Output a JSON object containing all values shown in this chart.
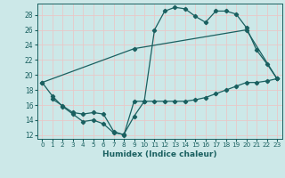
{
  "xlabel": "Humidex (Indice chaleur)",
  "ylabel": "",
  "bg_color": "#cce8e8",
  "grid_color": "#e8c8c8",
  "line_color": "#1a6060",
  "xlim": [
    -0.5,
    23.5
  ],
  "ylim": [
    11.5,
    29.5
  ],
  "xticks": [
    0,
    1,
    2,
    3,
    4,
    5,
    6,
    7,
    8,
    9,
    10,
    11,
    12,
    13,
    14,
    15,
    16,
    17,
    18,
    19,
    20,
    21,
    22,
    23
  ],
  "yticks": [
    12,
    14,
    16,
    18,
    20,
    22,
    24,
    26,
    28
  ],
  "line1_x": [
    0,
    1,
    2,
    3,
    4,
    5,
    6,
    7,
    8,
    9,
    10,
    11,
    12,
    13,
    14,
    15,
    16,
    17,
    18,
    19,
    20,
    21,
    22,
    23
  ],
  "line1_y": [
    19.0,
    17.2,
    15.8,
    14.8,
    13.8,
    14.0,
    13.5,
    12.3,
    12.1,
    14.5,
    16.5,
    26.0,
    28.5,
    29.0,
    28.8,
    27.8,
    27.0,
    28.5,
    28.5,
    28.1,
    26.3,
    23.3,
    21.5,
    19.5
  ],
  "line2_x": [
    0,
    9,
    20,
    23
  ],
  "line2_y": [
    19.0,
    23.5,
    26.0,
    19.5
  ],
  "line3_x": [
    1,
    2,
    3,
    4,
    5,
    6,
    7,
    8,
    9,
    10,
    11,
    12,
    13,
    14,
    15,
    16,
    17,
    18,
    19,
    20,
    21,
    22,
    23
  ],
  "line3_y": [
    16.8,
    15.9,
    15.0,
    14.8,
    15.0,
    14.8,
    12.5,
    12.0,
    16.5,
    16.5,
    16.5,
    16.5,
    16.5,
    16.5,
    16.7,
    17.0,
    17.5,
    18.0,
    18.5,
    19.0,
    19.0,
    19.2,
    19.5
  ]
}
